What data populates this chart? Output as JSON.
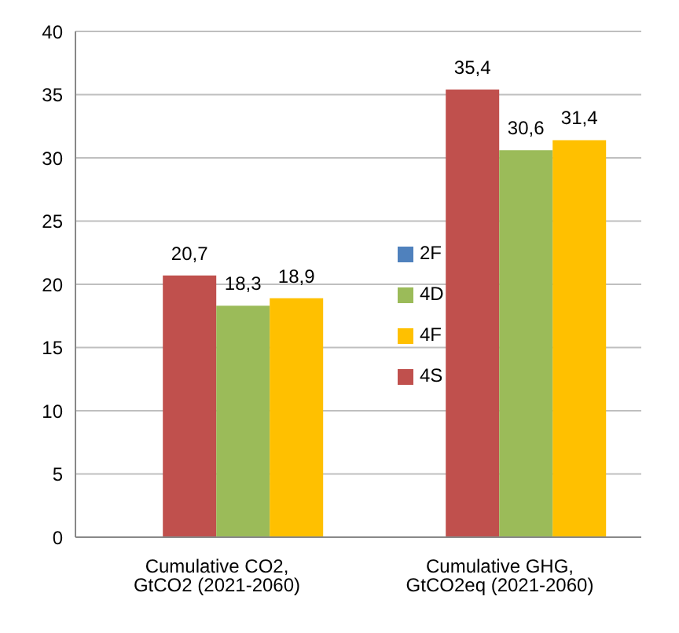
{
  "chart_data": {
    "type": "bar",
    "categories": [
      "Cumulative CO2, GtCO2 (2021-2060)",
      "Cumulative GHG, GtCO2eq (2021-2060)"
    ],
    "series": [
      {
        "name": "2F",
        "color": "#4f81bd",
        "values": [
          null,
          null
        ]
      },
      {
        "name": "4S",
        "color": "#c0504d",
        "values": [
          20.7,
          35.4
        ],
        "value_labels": [
          "20,7",
          "35,4"
        ]
      },
      {
        "name": "4D",
        "color": "#9bbb59",
        "values": [
          18.3,
          30.6
        ],
        "value_labels": [
          "18,3",
          "30,6"
        ]
      },
      {
        "name": "4F",
        "color": "#ffc000",
        "values": [
          18.9,
          31.4
        ],
        "value_labels": [
          "18,9",
          "31,4"
        ]
      }
    ],
    "ylim": [
      0,
      40
    ],
    "yticks": [
      0,
      5,
      10,
      15,
      20,
      25,
      30,
      35,
      40
    ],
    "grid": "y",
    "legend": "center"
  }
}
